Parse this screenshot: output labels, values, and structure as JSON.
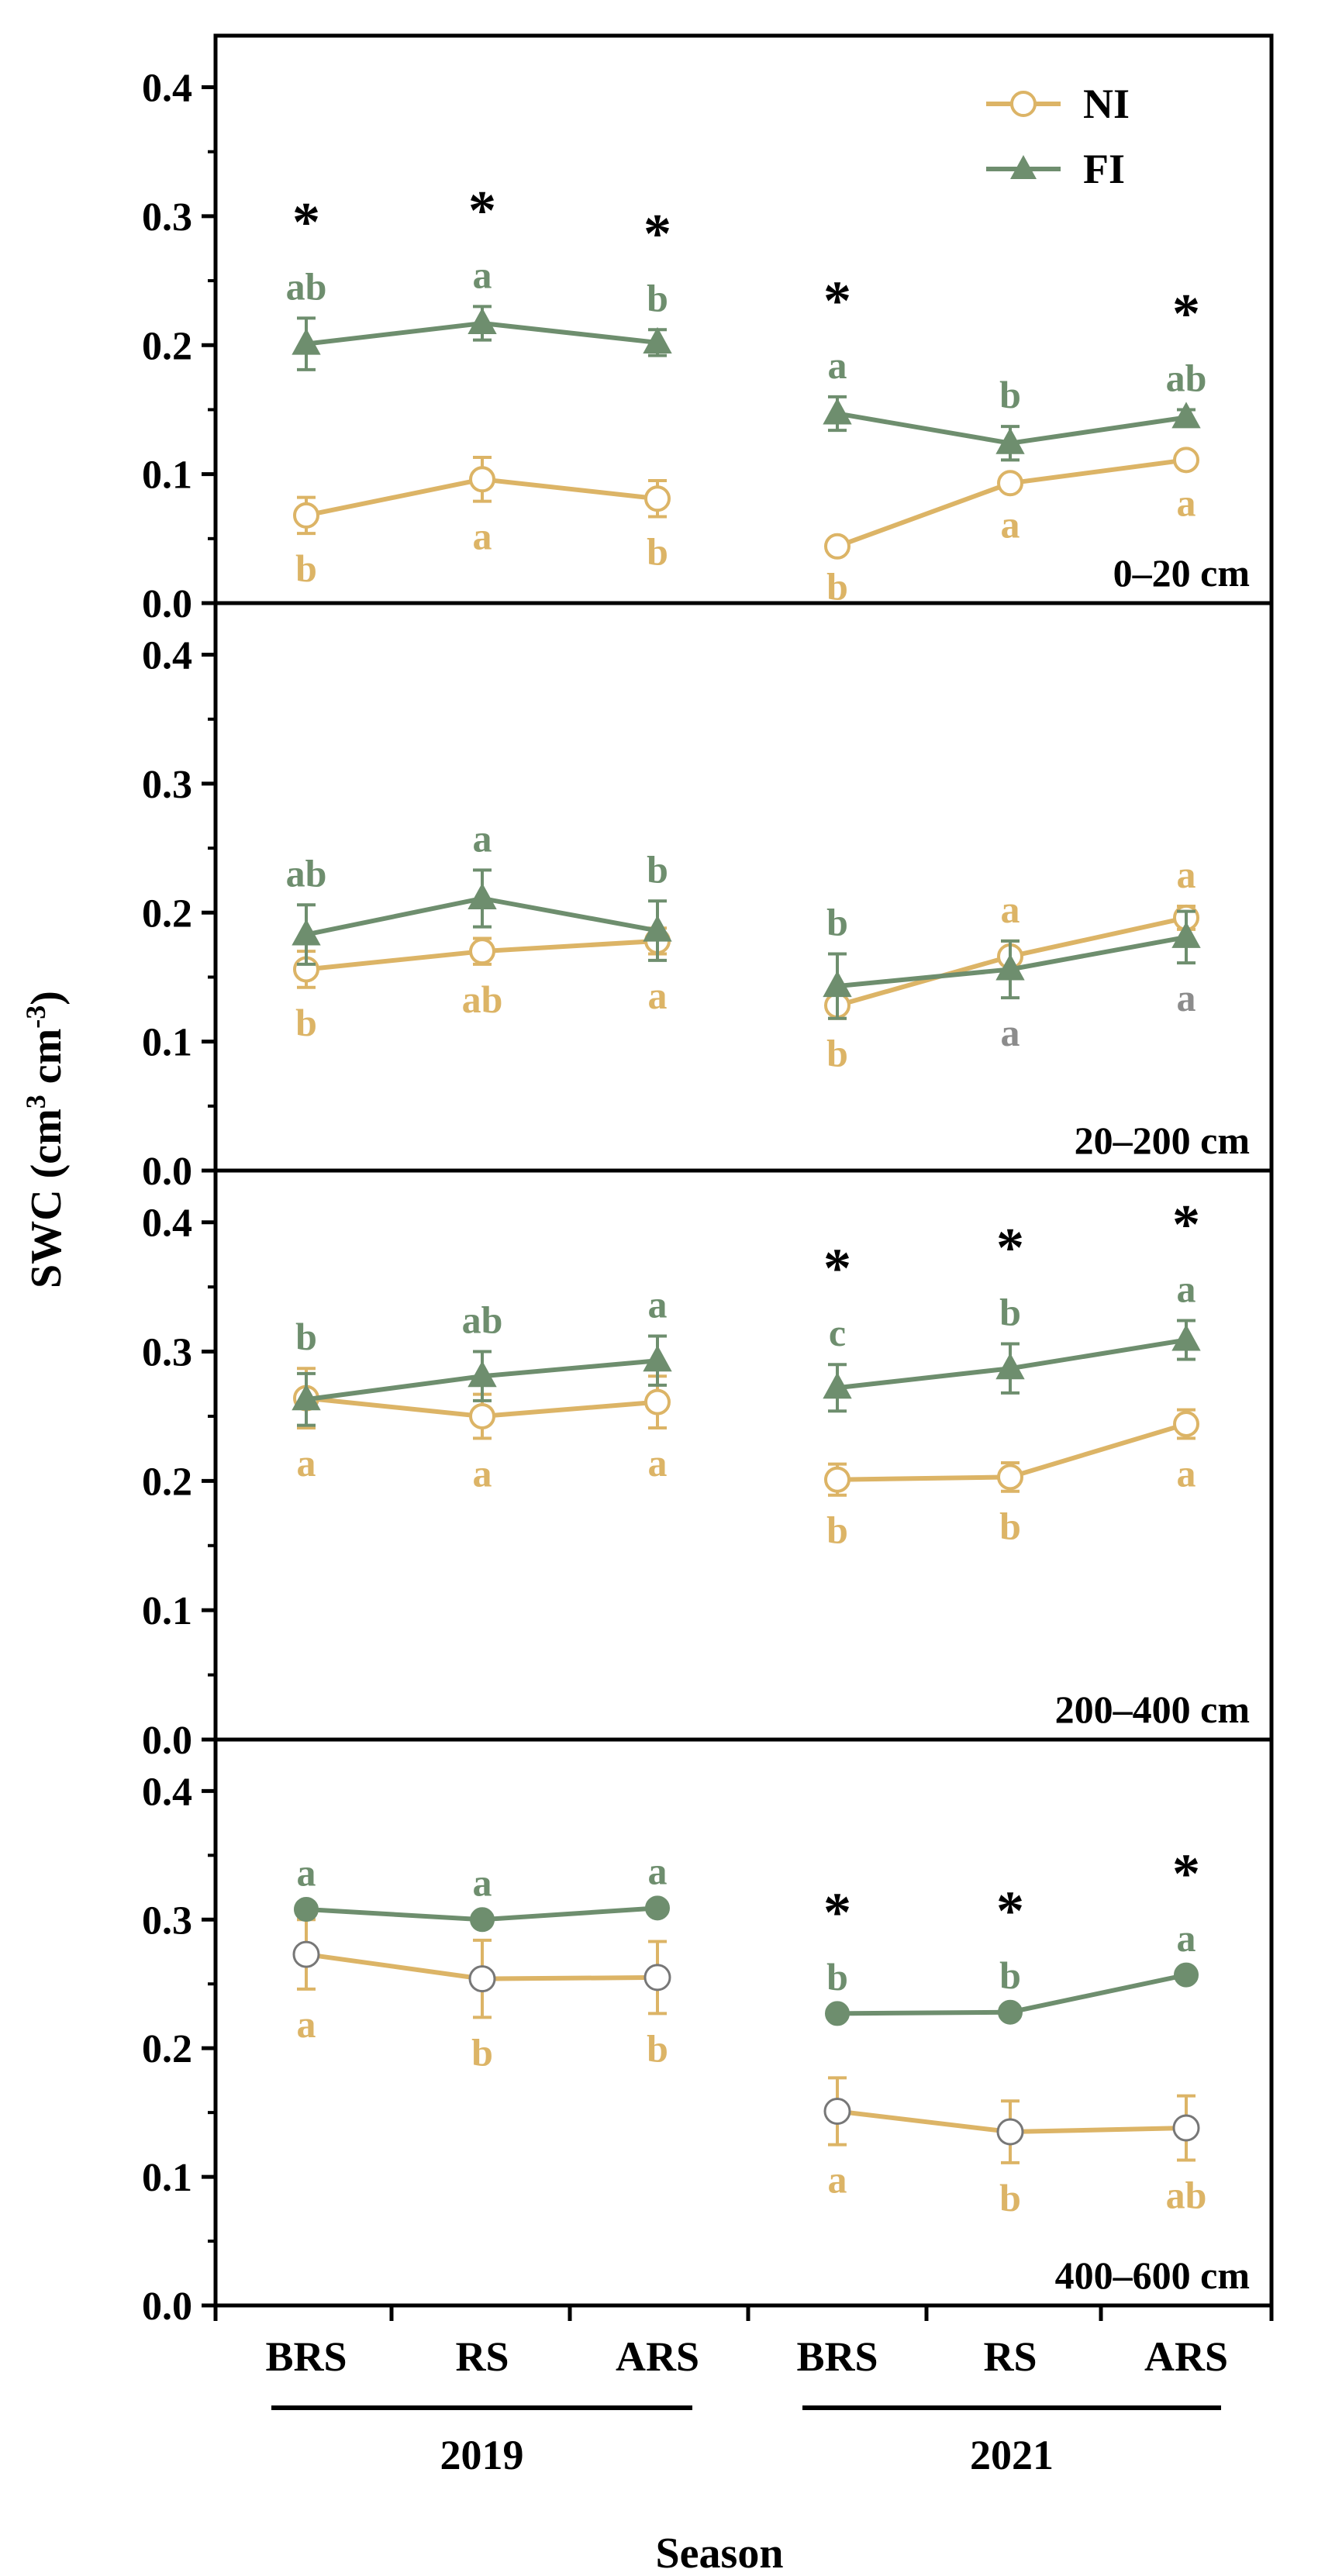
{
  "chart_data": {
    "type": "line",
    "ylabel_main": "SWC (cm",
    "ylabel_sup1": "3",
    "ylabel_mid": " cm",
    "ylabel_sup2": "-3",
    "ylabel_end": ")",
    "xlabel": "Season",
    "categories": [
      "BRS",
      "RS",
      "ARS",
      "BRS",
      "RS",
      "ARS"
    ],
    "years": [
      {
        "label": "2019",
        "from": 0,
        "to": 2
      },
      {
        "label": "2021",
        "from": 3,
        "to": 5
      }
    ],
    "ylim": [
      0,
      0.44
    ],
    "yticks": [
      "0.0",
      "0.1",
      "0.2",
      "0.3",
      "0.4"
    ],
    "legend": {
      "position": "top-right",
      "entries": [
        "NI",
        "FI"
      ]
    },
    "colors": {
      "NI": "#dcb466",
      "FI": "#6e8e6e",
      "star": "#000000",
      "gray_letter": "#8c8c8c"
    },
    "panels": [
      {
        "label": "0–20 cm",
        "series": [
          {
            "name": "NI",
            "marker": "circle-open",
            "segments": [
              [
                0,
                1,
                2
              ],
              [
                3,
                4,
                5
              ]
            ],
            "values": [
              0.068,
              0.096,
              0.081,
              0.044,
              0.093,
              0.111
            ],
            "errors": [
              0.014,
              0.017,
              0.014,
              0.004,
              0.005,
              0.006
            ],
            "letters": [
              "b",
              "a",
              "b",
              "b",
              "a",
              "a"
            ],
            "letter_pos": "below"
          },
          {
            "name": "FI",
            "marker": "triangle",
            "segments": [
              [
                0,
                1,
                2
              ],
              [
                3,
                4,
                5
              ]
            ],
            "values": [
              0.201,
              0.217,
              0.202,
              0.147,
              0.124,
              0.144
            ],
            "errors": [
              0.02,
              0.013,
              0.01,
              0.013,
              0.013,
              0.006
            ],
            "letters": [
              "ab",
              "a",
              "b",
              "a",
              "b",
              "ab"
            ],
            "letter_pos": "above"
          }
        ],
        "stars": [
          true,
          true,
          true,
          true,
          false,
          true
        ]
      },
      {
        "label": "20–200 cm",
        "series": [
          {
            "name": "NI",
            "marker": "circle-open",
            "segments": [
              [
                0,
                1,
                2
              ],
              [
                3,
                4,
                5
              ]
            ],
            "values": [
              0.156,
              0.17,
              0.178,
              0.128,
              0.166,
              0.196
            ],
            "errors": [
              0.014,
              0.01,
              0.01,
              0.01,
              0.012,
              0.009
            ],
            "letters": [
              "b",
              "ab",
              "a",
              "b",
              "a",
              "a"
            ],
            "letter_pos": "mixed"
          },
          {
            "name": "FI",
            "marker": "triangle",
            "segments": [
              [
                0,
                1,
                2
              ],
              [
                3,
                4,
                5
              ]
            ],
            "values": [
              0.183,
              0.211,
              0.186,
              0.143,
              0.156,
              0.181
            ],
            "errors": [
              0.023,
              0.022,
              0.023,
              0.025,
              0.022,
              0.02
            ],
            "letters": [
              "ab",
              "a",
              "b",
              "b",
              "a",
              "a"
            ],
            "letter_pos": "mixed"
          }
        ],
        "stars": [
          false,
          false,
          false,
          false,
          false,
          false
        ]
      },
      {
        "label": "200–400 cm",
        "series": [
          {
            "name": "NI",
            "marker": "circle-open",
            "segments": [
              [
                0,
                1,
                2
              ],
              [
                3,
                4,
                5
              ]
            ],
            "values": [
              0.264,
              0.25,
              0.261,
              0.201,
              0.203,
              0.244
            ],
            "errors": [
              0.023,
              0.017,
              0.02,
              0.012,
              0.011,
              0.011
            ],
            "letters": [
              "a",
              "a",
              "a",
              "b",
              "b",
              "a"
            ],
            "letter_pos": "below"
          },
          {
            "name": "FI",
            "marker": "triangle",
            "segments": [
              [
                0,
                1,
                2
              ],
              [
                3,
                4,
                5
              ]
            ],
            "values": [
              0.263,
              0.281,
              0.293,
              0.272,
              0.287,
              0.309
            ],
            "errors": [
              0.02,
              0.019,
              0.019,
              0.018,
              0.019,
              0.015
            ],
            "letters": [
              "b",
              "ab",
              "a",
              "c",
              "b",
              "a"
            ],
            "letter_pos": "above"
          }
        ],
        "stars": [
          false,
          false,
          false,
          true,
          true,
          true
        ]
      },
      {
        "label": "400–600 cm",
        "series": [
          {
            "name": "NI",
            "marker": "circle-open-gray",
            "segments": [
              [
                0,
                1,
                2
              ],
              [
                3,
                4,
                5
              ]
            ],
            "values": [
              0.273,
              0.254,
              0.255,
              0.151,
              0.135,
              0.138
            ],
            "errors": [
              0.027,
              0.03,
              0.028,
              0.026,
              0.024,
              0.025
            ],
            "letters": [
              "a",
              "b",
              "b",
              "a",
              "b",
              "ab"
            ],
            "letter_pos": "below"
          },
          {
            "name": "FI",
            "marker": "circle-filled",
            "segments": [
              [
                0,
                1,
                2
              ],
              [
                3,
                4,
                5
              ]
            ],
            "values": [
              0.308,
              0.3,
              0.309,
              0.227,
              0.228,
              0.257
            ],
            "errors": [
              0.004,
              0.004,
              0.004,
              0.004,
              0.004,
              0.004
            ],
            "letters": [
              "a",
              "a",
              "a",
              "b",
              "b",
              "a"
            ],
            "letter_pos": "above"
          }
        ],
        "stars": [
          false,
          false,
          false,
          true,
          true,
          true
        ]
      }
    ]
  }
}
